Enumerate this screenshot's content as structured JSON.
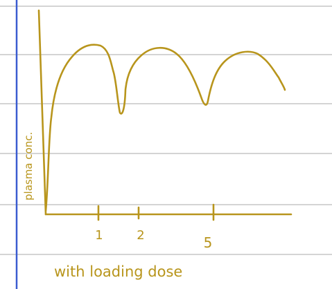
{
  "y_axis_label": "plasma conc.",
  "x_tick_labels": [
    "1",
    "2",
    "5"
  ],
  "caption": "with loading dose"
}
